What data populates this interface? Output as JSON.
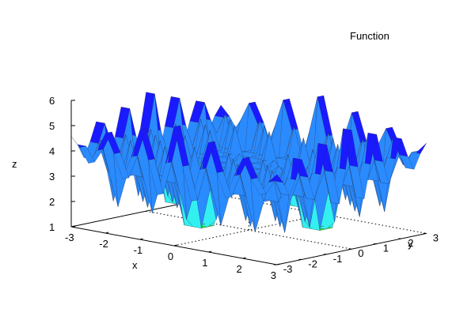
{
  "chart_data": {
    "type": "surface3d",
    "title": "",
    "legend": {
      "entries": [
        "Function"
      ],
      "placement": "top-right"
    },
    "xlabel": "x",
    "ylabel": "y",
    "zlabel": "z",
    "xlim": [
      -3,
      3
    ],
    "ylim": [
      -3,
      3
    ],
    "zlim": [
      1,
      6
    ],
    "x_ticks": [
      "-3",
      "-2",
      "-1",
      "0",
      "1",
      "2",
      "3"
    ],
    "y_ticks": [
      "-3",
      "-2",
      "-1",
      "0",
      "1",
      "2",
      "3"
    ],
    "z_ticks": [
      "1",
      "2",
      "3",
      "4",
      "5",
      "6"
    ],
    "grid": false,
    "colormap": [
      "#2fe02f",
      "#33f0f0",
      "#2a8bff",
      "#1a1aff",
      "#b070ff"
    ],
    "surface": {
      "description_points": [
        {
          "x": -3,
          "y": -3,
          "z": 5.7
        },
        {
          "x": -3,
          "y": 3,
          "z": 4.0
        },
        {
          "x": 0,
          "y": 3,
          "z": 5.7
        },
        {
          "x": 3,
          "y": 3,
          "z": 5.7
        },
        {
          "x": 0,
          "y": -3,
          "z": 5.7
        },
        {
          "x": -2,
          "y": -2,
          "z": 1.5
        },
        {
          "x": 0,
          "y": 0,
          "z": 3.0
        }
      ]
    }
  }
}
